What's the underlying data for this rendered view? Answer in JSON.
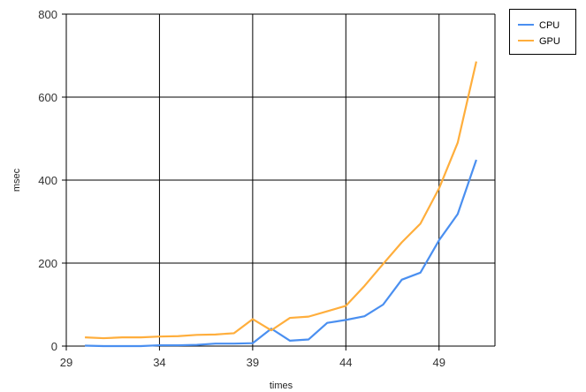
{
  "chart_data": {
    "type": "line",
    "xlabel": "times",
    "ylabel": "msec",
    "xlim": [
      29,
      52
    ],
    "ylim": [
      0,
      800
    ],
    "xticks": [
      29,
      34,
      39,
      44,
      49
    ],
    "yticks": [
      0,
      200,
      400,
      600,
      800
    ],
    "grid": true,
    "legend_position": "top-right",
    "x": [
      30,
      31,
      32,
      33,
      34,
      35,
      36,
      37,
      38,
      39,
      40,
      41,
      42,
      43,
      44,
      45,
      46,
      47,
      48,
      49,
      50,
      51
    ],
    "series": [
      {
        "name": "CPU",
        "color": "#4a8ff0",
        "values": [
          1,
          0,
          0,
          0,
          2,
          2,
          3,
          6,
          6,
          7,
          42,
          13,
          16,
          56,
          63,
          72,
          100,
          160,
          177,
          255,
          318,
          449
        ]
      },
      {
        "name": "GPU",
        "color": "#ffae3c",
        "values": [
          21,
          19,
          21,
          21,
          23,
          24,
          27,
          28,
          31,
          65,
          38,
          68,
          71,
          84,
          97,
          145,
          198,
          250,
          295,
          380,
          490,
          686
        ]
      }
    ]
  }
}
